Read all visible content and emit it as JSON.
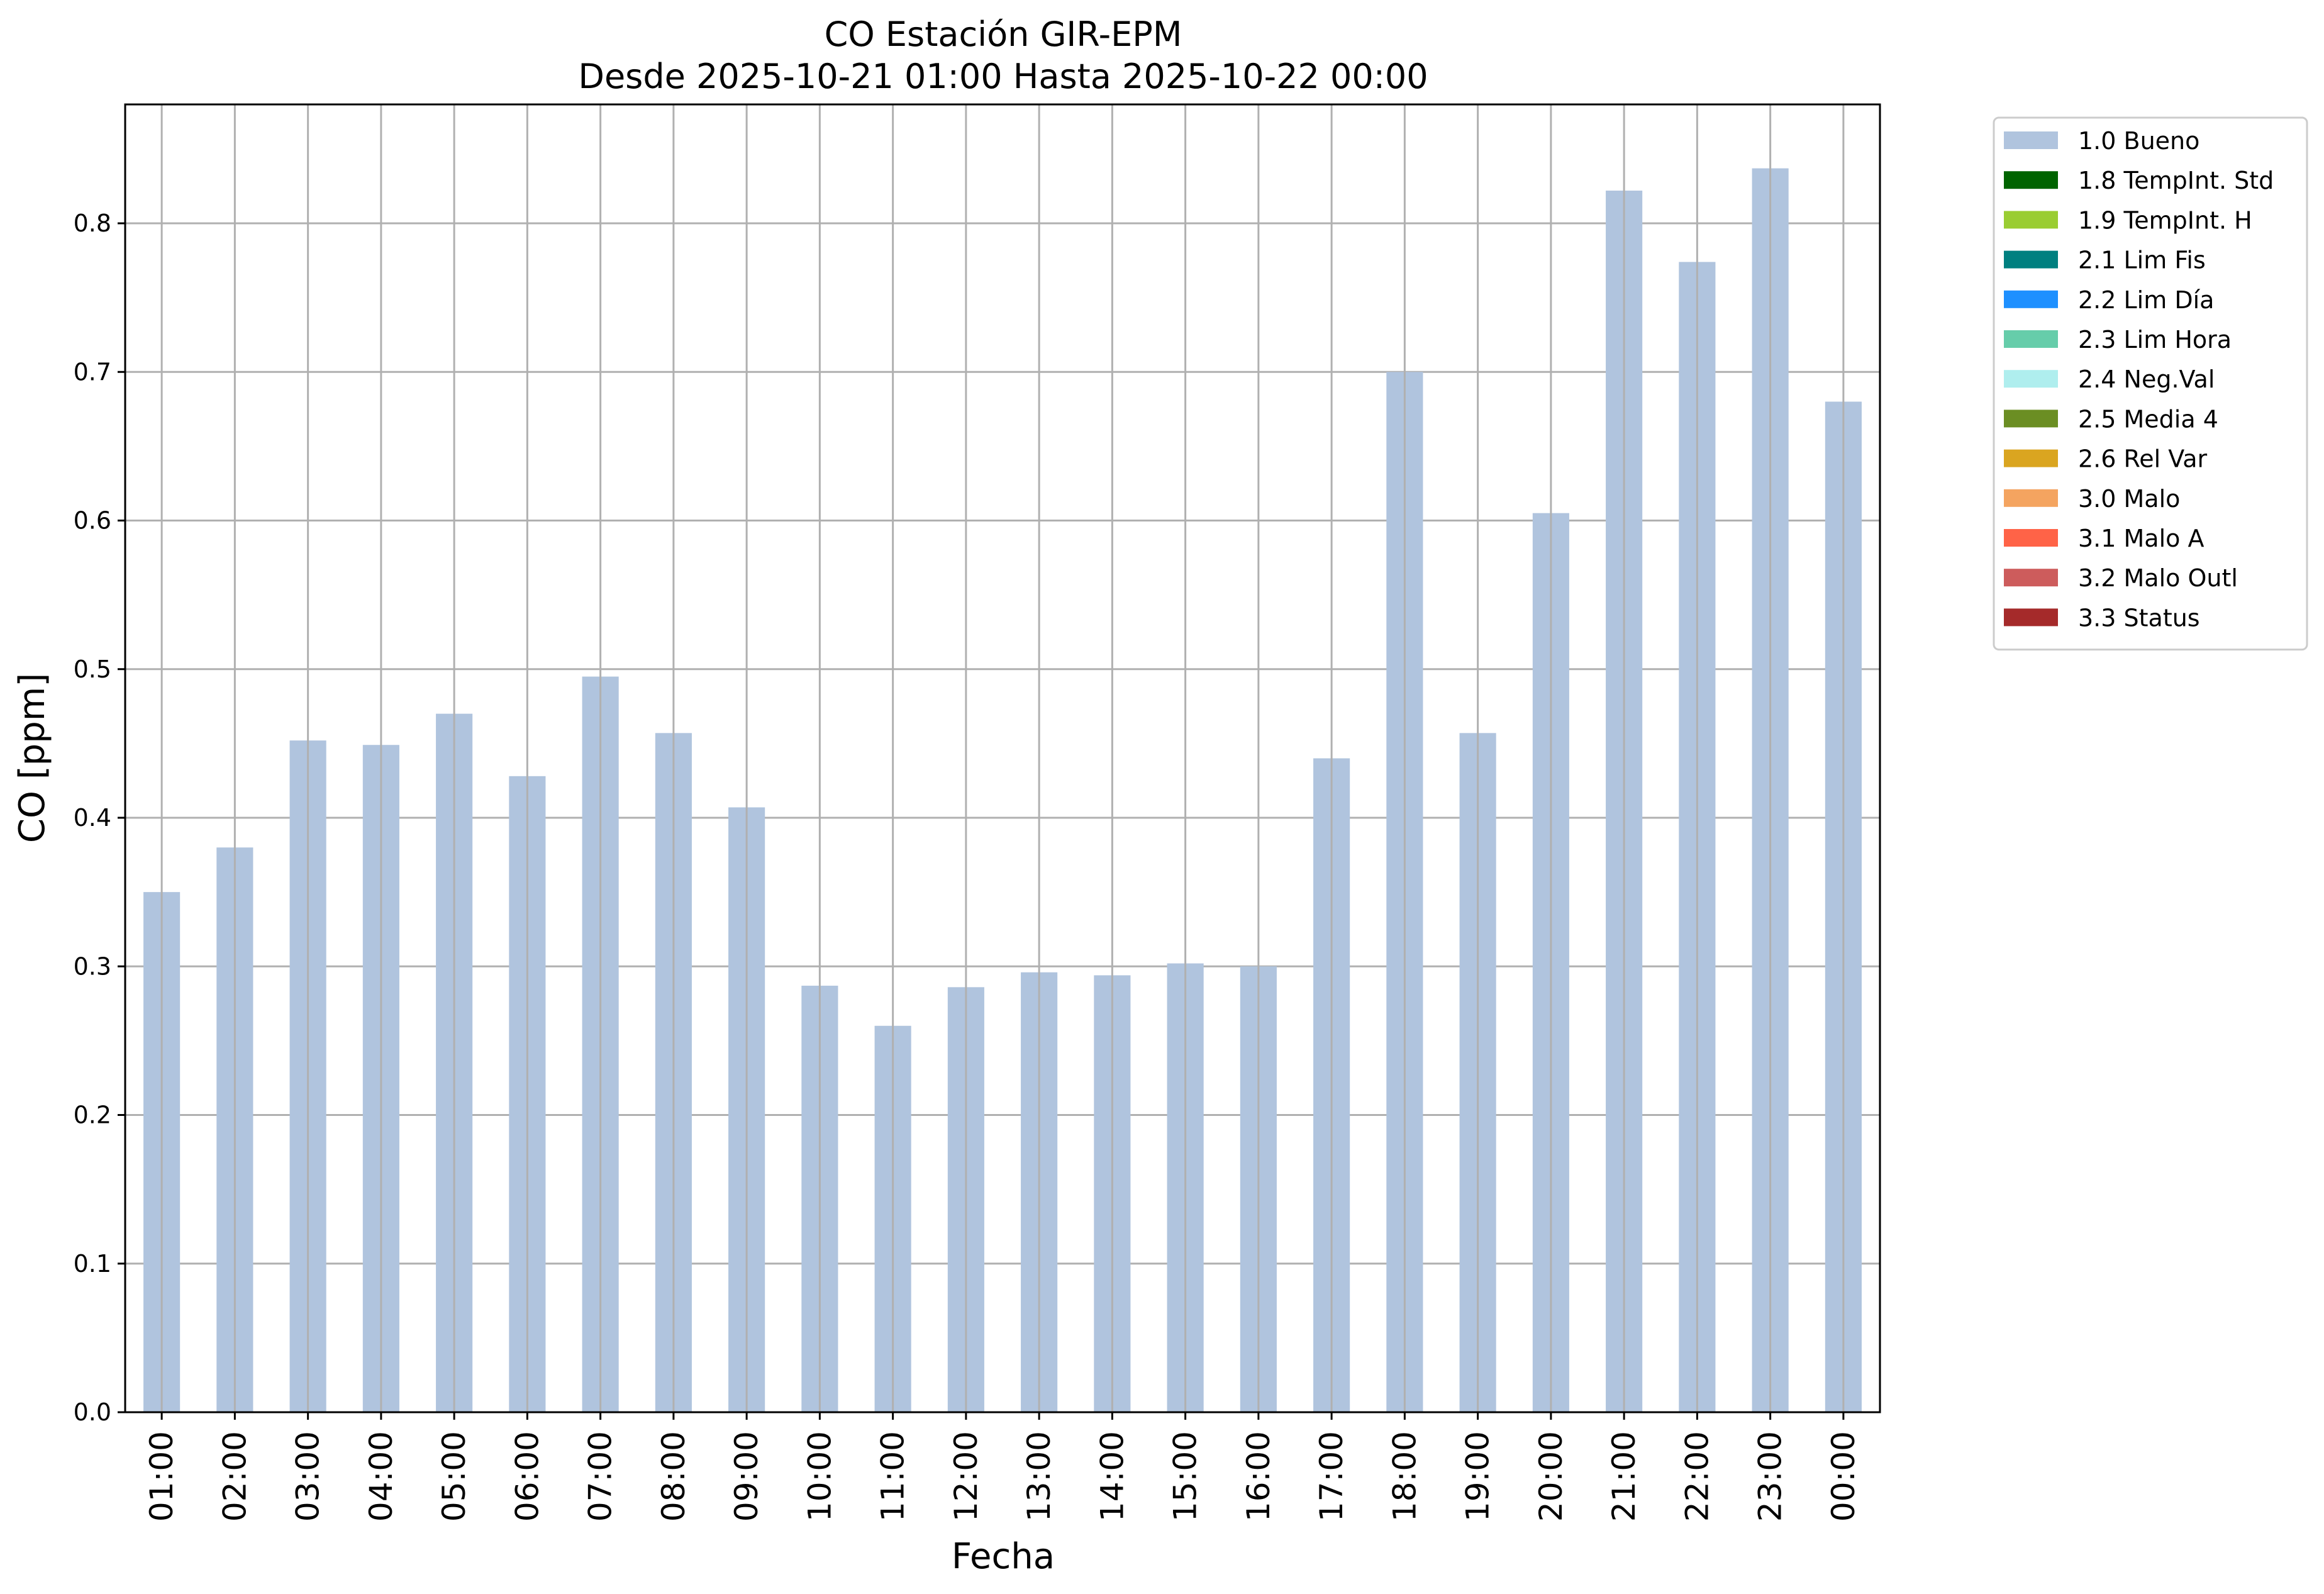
{
  "chart_data": {
    "type": "bar",
    "title": "CO Estación GIR-EPM",
    "subtitle": "Desde 2025-10-21 01:00 Hasta 2025-10-22 00:00",
    "xlabel": "Fecha",
    "ylabel": "CO [ppm]",
    "ylim": [
      0,
      0.88
    ],
    "yticks": [
      "0.0",
      "0.1",
      "0.2",
      "0.3",
      "0.4",
      "0.5",
      "0.6",
      "0.7",
      "0.8"
    ],
    "grid": true,
    "legend_position": "outside-top-right",
    "categories": [
      "01:00",
      "02:00",
      "03:00",
      "04:00",
      "05:00",
      "06:00",
      "07:00",
      "08:00",
      "09:00",
      "10:00",
      "11:00",
      "12:00",
      "13:00",
      "14:00",
      "15:00",
      "16:00",
      "17:00",
      "18:00",
      "19:00",
      "20:00",
      "21:00",
      "22:00",
      "23:00",
      "00:00"
    ],
    "series": [
      {
        "name": "1.0 Bueno",
        "color": "#b0c4de",
        "values": [
          0.35,
          0.38,
          0.452,
          0.449,
          0.47,
          0.428,
          0.495,
          0.457,
          0.407,
          0.287,
          0.26,
          0.286,
          0.296,
          0.294,
          0.302,
          0.3,
          0.44,
          0.7,
          0.457,
          0.605,
          0.822,
          0.774,
          0.837,
          0.68
        ]
      }
    ],
    "legend": [
      {
        "label": "1.0 Bueno",
        "color": "#b0c4de"
      },
      {
        "label": "1.8 TempInt. Std",
        "color": "#006400"
      },
      {
        "label": "1.9 TempInt. H",
        "color": "#9acd32"
      },
      {
        "label": "2.1 Lim Fis",
        "color": "#008080"
      },
      {
        "label": "2.2 Lim Día",
        "color": "#1e90ff"
      },
      {
        "label": "2.3 Lim Hora",
        "color": "#66cdaa"
      },
      {
        "label": "2.4 Neg.Val",
        "color": "#afeeee"
      },
      {
        "label": "2.5 Media 4",
        "color": "#6b8e23"
      },
      {
        "label": "2.6 Rel Var",
        "color": "#daa520"
      },
      {
        "label": "3.0 Malo",
        "color": "#f4a460"
      },
      {
        "label": "3.1 Malo A",
        "color": "#ff6347"
      },
      {
        "label": "3.2 Malo Outl",
        "color": "#cd5c5c"
      },
      {
        "label": "3.3 Status",
        "color": "#a52a2a"
      }
    ]
  }
}
